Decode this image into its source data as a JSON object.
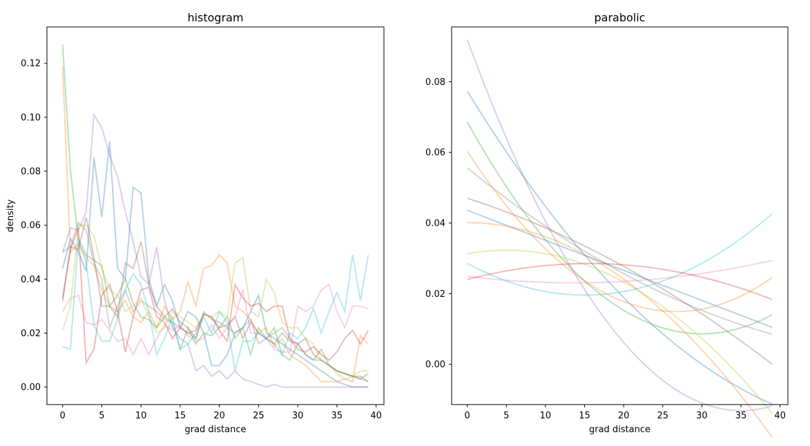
{
  "chart_data": [
    {
      "type": "line",
      "title": "histogram",
      "xlabel": "grad distance",
      "ylabel": "density",
      "xlim": [
        -2,
        41
      ],
      "ylim": [
        -0.0065,
        0.1335
      ],
      "xticks": [
        "0",
        "5",
        "10",
        "15",
        "20",
        "25",
        "30",
        "35",
        "40"
      ],
      "yticks": [
        "0.00",
        "0.02",
        "0.04",
        "0.06",
        "0.08",
        "0.10",
        "0.12"
      ],
      "grid": false,
      "series": [
        {
          "color": "#1f77b4",
          "values": [
            0.044,
            0.055,
            0.05,
            0.043,
            0.085,
            0.063,
            0.091,
            0.044,
            0.04,
            0.074,
            0.072,
            0.04,
            0.03,
            0.038,
            0.032,
            0.022,
            0.028,
            0.026,
            0.02,
            0.008,
            0.008,
            0.012,
            0.02,
            0.022,
            0.028,
            0.034,
            0.02,
            0.018,
            0.016,
            0.014,
            0.012,
            0.01,
            0.008,
            0.006,
            0.004,
            0.002,
            0.001,
            0.0,
            0.0,
            0.0
          ]
        },
        {
          "color": "#ff7f0e",
          "values": [
            0.119,
            0.05,
            0.053,
            0.048,
            0.045,
            0.036,
            0.03,
            0.028,
            0.032,
            0.026,
            0.024,
            0.028,
            0.022,
            0.03,
            0.025,
            0.028,
            0.039,
            0.03,
            0.044,
            0.045,
            0.049,
            0.046,
            0.03,
            0.028,
            0.025,
            0.02,
            0.022,
            0.015,
            0.018,
            0.012,
            0.01,
            0.008,
            0.005,
            0.002,
            0.002,
            0.002,
            0.003,
            0.002,
            0.019,
            0.016
          ]
        },
        {
          "color": "#2ca02c",
          "values": [
            0.127,
            0.08,
            0.055,
            0.049,
            0.047,
            0.045,
            0.03,
            0.034,
            0.04,
            0.031,
            0.026,
            0.025,
            0.022,
            0.026,
            0.024,
            0.014,
            0.022,
            0.016,
            0.02,
            0.019,
            0.022,
            0.026,
            0.018,
            0.022,
            0.012,
            0.022,
            0.018,
            0.022,
            0.012,
            0.01,
            0.016,
            0.012,
            0.01,
            0.014,
            0.008,
            0.006,
            0.005,
            0.004,
            0.003,
            0.005
          ]
        },
        {
          "color": "#d62728",
          "values": [
            0.033,
            0.051,
            0.059,
            0.009,
            0.014,
            0.034,
            0.038,
            0.028,
            0.013,
            0.026,
            0.036,
            0.037,
            0.026,
            0.024,
            0.018,
            0.022,
            0.02,
            0.021,
            0.027,
            0.026,
            0.021,
            0.017,
            0.038,
            0.033,
            0.03,
            0.031,
            0.028,
            0.03,
            0.03,
            0.018,
            0.014,
            0.013,
            0.015,
            0.012,
            0.01,
            0.013,
            0.018,
            0.021,
            0.016,
            0.021
          ]
        },
        {
          "color": "#9467bd",
          "values": [
            0.05,
            0.059,
            0.058,
            0.065,
            0.101,
            0.096,
            0.086,
            0.078,
            0.065,
            0.054,
            0.041,
            0.038,
            0.052,
            0.032,
            0.022,
            0.018,
            0.016,
            0.006,
            0.008,
            0.004,
            0.006,
            0.003,
            0.006,
            0.003,
            0.002,
            0.001,
            0.0,
            0.001,
            0.0,
            0.0,
            0.0,
            0.0,
            0.0,
            0.0,
            0.0,
            0.0,
            0.0,
            0.0,
            0.0,
            0.0
          ]
        },
        {
          "color": "#8c564b",
          "values": [
            0.032,
            0.052,
            0.051,
            0.063,
            0.048,
            0.03,
            0.03,
            0.026,
            0.046,
            0.044,
            0.054,
            0.038,
            0.03,
            0.026,
            0.029,
            0.024,
            0.022,
            0.018,
            0.027,
            0.026,
            0.022,
            0.023,
            0.026,
            0.018,
            0.024,
            0.02,
            0.018,
            0.016,
            0.02,
            0.017,
            0.016,
            0.018,
            0.012,
            0.01,
            0.008,
            0.006,
            0.005,
            0.004,
            0.004,
            0.002
          ]
        },
        {
          "color": "#e377c2",
          "values": [
            0.028,
            0.033,
            0.034,
            0.024,
            0.023,
            0.025,
            0.021,
            0.017,
            0.018,
            0.012,
            0.018,
            0.012,
            0.018,
            0.023,
            0.021,
            0.023,
            0.019,
            0.017,
            0.018,
            0.023,
            0.018,
            0.022,
            0.026,
            0.036,
            0.02,
            0.02,
            0.018,
            0.014,
            0.013,
            0.013,
            0.03,
            0.028,
            0.03,
            0.036,
            0.038,
            0.028,
            0.022,
            0.03,
            0.03,
            0.029
          ]
        },
        {
          "color": "#7f7f7f",
          "values": [
            0.05,
            0.052,
            0.061,
            0.058,
            0.046,
            0.04,
            0.022,
            0.03,
            0.036,
            0.028,
            0.032,
            0.03,
            0.028,
            0.025,
            0.024,
            0.022,
            0.02,
            0.018,
            0.028,
            0.025,
            0.024,
            0.022,
            0.02,
            0.022,
            0.025,
            0.016,
            0.018,
            0.02,
            0.022,
            0.018,
            0.016,
            0.012,
            0.01,
            0.01,
            0.008,
            0.006,
            0.005,
            0.004,
            0.003,
            0.002
          ]
        },
        {
          "color": "#bcbd22",
          "values": [
            0.021,
            0.03,
            0.06,
            0.06,
            0.056,
            0.044,
            0.036,
            0.034,
            0.028,
            0.03,
            0.033,
            0.026,
            0.02,
            0.022,
            0.028,
            0.026,
            0.024,
            0.022,
            0.027,
            0.026,
            0.028,
            0.026,
            0.046,
            0.048,
            0.028,
            0.026,
            0.04,
            0.035,
            0.024,
            0.022,
            0.022,
            0.018,
            0.016,
            0.01,
            0.008,
            0.005,
            0.003,
            0.004,
            0.006,
            0.006
          ]
        },
        {
          "color": "#17becf",
          "values": [
            0.015,
            0.014,
            0.055,
            0.046,
            0.023,
            0.017,
            0.017,
            0.025,
            0.036,
            0.042,
            0.038,
            0.028,
            0.012,
            0.018,
            0.026,
            0.014,
            0.016,
            0.02,
            0.026,
            0.02,
            0.028,
            0.024,
            0.006,
            0.017,
            0.017,
            0.02,
            0.018,
            0.016,
            0.012,
            0.02,
            0.018,
            0.022,
            0.029,
            0.02,
            0.028,
            0.035,
            0.028,
            0.049,
            0.032,
            0.049
          ]
        }
      ]
    },
    {
      "type": "line",
      "title": "parabolic",
      "xlabel": "grad distance",
      "ylabel": "",
      "xlim": [
        -2,
        41
      ],
      "ylim": [
        -0.0114,
        0.0955
      ],
      "xticks": [
        "0",
        "5",
        "10",
        "15",
        "20",
        "25",
        "30",
        "35",
        "40"
      ],
      "yticks": [
        "0.00",
        "0.02",
        "0.04",
        "0.06",
        "0.08"
      ],
      "grid": false,
      "x_end": 39,
      "series": [
        {
          "color": "#9467bd",
          "coef": [
            0.0919,
            -0.006,
            8.57e-05
          ]
        },
        {
          "color": "#1f77b4",
          "coef": [
            0.0773,
            -0.0036,
            3.41e-05
          ]
        },
        {
          "color": "#2ca02c",
          "coef": [
            0.0686,
            -0.004,
            6.67e-05
          ]
        },
        {
          "color": "#ff7f0e",
          "coef": [
            0.0603,
            -0.0034,
            6.37e-05
          ]
        },
        {
          "color": "#7f7f7f",
          "coef": [
            0.0556,
            -0.0018,
            1.52e-05
          ]
        },
        {
          "color": "#8c564b",
          "coef": [
            0.047,
            -0.00071,
            -1.27e-05
          ]
        },
        {
          "color": "#1f77b4",
          "coef": [
            0.0436,
            -0.00085,
            0.0
          ]
        },
        {
          "color": "#ff7f0e",
          "coef": [
            0.0401,
            0.0,
            -4e-05
          ]
        },
        {
          "color": "#bcbd22",
          "coef": [
            0.0313,
            0.0004,
            -4e-05
          ]
        },
        {
          "color": "#17becf",
          "coef": [
            0.0286,
            -0.0012,
            4e-05
          ]
        },
        {
          "color": "#e377c2",
          "coef": [
            0.0249,
            -0.00027,
            9.9e-06
          ]
        },
        {
          "color": "#d62728",
          "coef": [
            0.024,
            0.00058,
            -1.86e-05
          ]
        }
      ]
    }
  ]
}
